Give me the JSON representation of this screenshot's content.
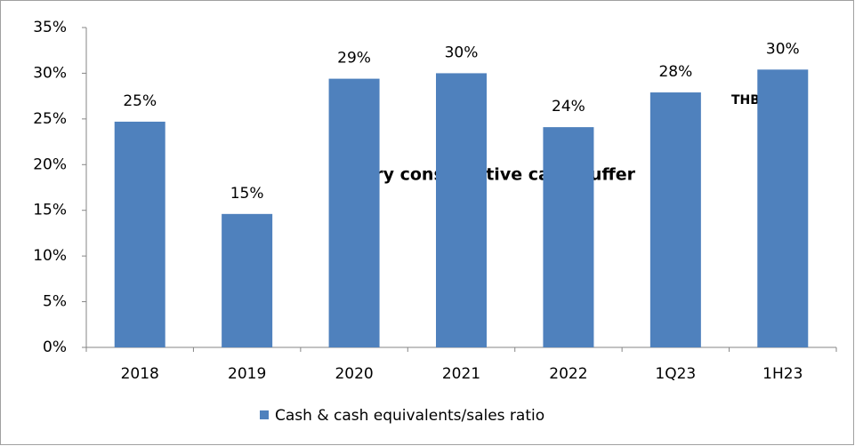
{
  "chart_data": {
    "type": "bar",
    "categories": [
      "2018",
      "2019",
      "2020",
      "2021",
      "2022",
      "1Q23",
      "1H23"
    ],
    "series": [
      {
        "name": "Cash & cash equivalents/sales ratio",
        "color": "#4f81bd",
        "values": [
          24.7,
          14.6,
          29.4,
          30.0,
          24.1,
          27.9,
          30.4
        ],
        "value_labels": [
          "25%",
          "15%",
          "29%",
          "30%",
          "24%",
          "28%",
          "30%"
        ]
      }
    ],
    "ylim": [
      0,
      35
    ],
    "yticks": [
      {
        "value": 0,
        "label": "0%"
      },
      {
        "value": 5,
        "label": "5%"
      },
      {
        "value": 10,
        "label": "10%"
      },
      {
        "value": 15,
        "label": "15%"
      },
      {
        "value": 20,
        "label": "20%"
      },
      {
        "value": 25,
        "label": "25%"
      },
      {
        "value": 30,
        "label": "30%"
      },
      {
        "value": 35,
        "label": "35%"
      }
    ],
    "grid": false,
    "legend": "bottom",
    "annotations": [
      "very conservative cash buffer",
      "THB13.8 b"
    ]
  }
}
